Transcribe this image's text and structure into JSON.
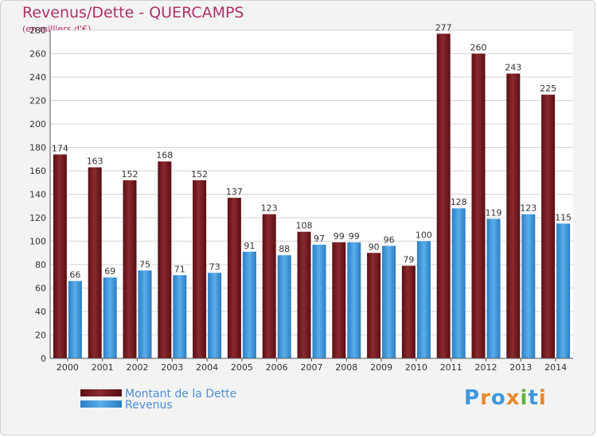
{
  "chart_data": {
    "type": "bar",
    "title": "Revenus/Dette - QUERCAMPS",
    "subtitle": "(en milliers d'€)",
    "categories": [
      "2000",
      "2001",
      "2002",
      "2003",
      "2004",
      "2005",
      "2006",
      "2007",
      "2008",
      "2009",
      "2010",
      "2011",
      "2012",
      "2013",
      "2014"
    ],
    "series": [
      {
        "name": "Montant de la Dette",
        "color": "#7a1a1f",
        "values": [
          174,
          163,
          152,
          168,
          152,
          137,
          123,
          108,
          99,
          90,
          79,
          277,
          260,
          243,
          225
        ]
      },
      {
        "name": "Revenus",
        "color": "#3f97dd",
        "values": [
          66,
          69,
          75,
          71,
          73,
          91,
          88,
          97,
          99,
          96,
          100,
          128,
          119,
          123,
          115
        ]
      }
    ],
    "ylim": [
      0,
      280
    ],
    "yticks": [
      0,
      20,
      40,
      60,
      80,
      100,
      120,
      140,
      160,
      180,
      200,
      220,
      240,
      260,
      280
    ],
    "grid": true,
    "legend": "bottom-left",
    "logo_text": "Proxiti"
  }
}
